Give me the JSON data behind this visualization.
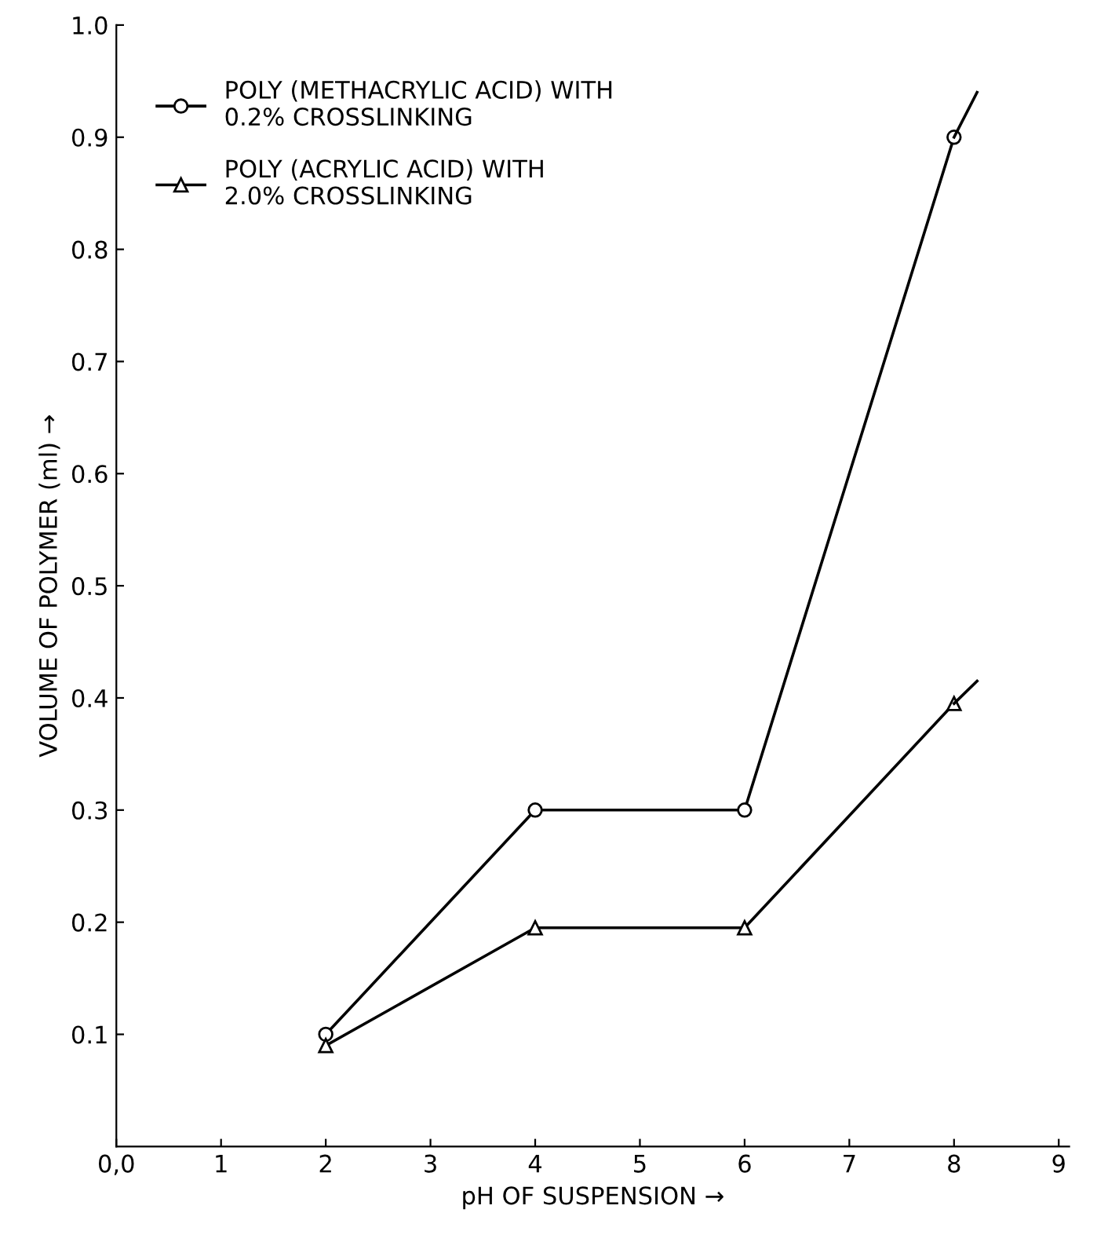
{
  "chart_data": {
    "type": "line",
    "xlabel": "pH OF SUSPENSION →",
    "ylabel": "VOLUME OF POLYMER (ml) →",
    "xlim": [
      0,
      9.1
    ],
    "ylim": [
      0,
      1.0
    ],
    "xticks": [
      {
        "value": 0,
        "label": "0,0"
      },
      1,
      2,
      3,
      4,
      5,
      6,
      7,
      8,
      9
    ],
    "yticks": [
      0.1,
      0.2,
      0.3,
      0.4,
      0.5,
      0.6,
      0.7,
      0.8,
      0.9,
      {
        "value": 1.0,
        "label": "1.0"
      }
    ],
    "grid": false,
    "legend": "top left",
    "line_style": "solid",
    "series": [
      {
        "name": "POLY (METHACRYLIC ACID) WITH\n0.2% CROSSLINKING",
        "color": "#000000",
        "marker": "circle",
        "x": [
          2,
          4,
          6,
          8
        ],
        "values": [
          0.1,
          0.3,
          0.3,
          0.9
        ]
      },
      {
        "name": "POLY (ACRYLIC ACID) WITH\n2.0% CROSSLINKING",
        "color": "#000000",
        "marker": "triangle",
        "x": [
          2,
          4,
          6,
          8
        ],
        "values": [
          0.09,
          0.195,
          0.195,
          0.395
        ]
      },
      {
        "color": "#000000",
        "marker": "none",
        "x": [
          8,
          8.22
        ],
        "values": [
          0.9,
          0.94
        ]
      },
      {
        "color": "#000000",
        "marker": "none",
        "x": [
          8,
          8.22
        ],
        "values": [
          0.395,
          0.415
        ]
      }
    ]
  }
}
